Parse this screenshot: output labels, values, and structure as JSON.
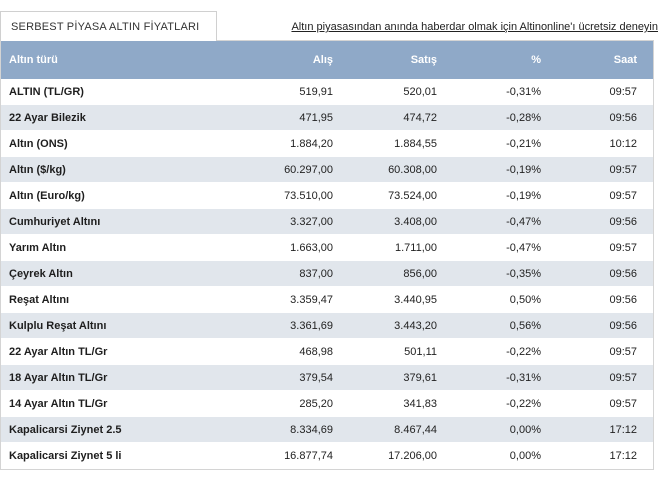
{
  "tab_title": "SERBEST PİYASA ALTIN FİYATLARI",
  "promo_link": "Altın piyasasından anında haberdar olmak için Altinonline'ı ücretsiz deneyin",
  "columns": {
    "name": "Altın türü",
    "buy": "Alış",
    "sell": "Satış",
    "pct": "%",
    "time": "Saat"
  },
  "rows": [
    {
      "name": "ALTIN (TL/GR)",
      "buy": "519,91",
      "sell": "520,01",
      "pct": "-0,31%",
      "time": "09:57"
    },
    {
      "name": "22 Ayar Bilezik",
      "buy": "471,95",
      "sell": "474,72",
      "pct": "-0,28%",
      "time": "09:56"
    },
    {
      "name": "Altın (ONS)",
      "buy": "1.884,20",
      "sell": "1.884,55",
      "pct": "-0,21%",
      "time": "10:12"
    },
    {
      "name": "Altın ($/kg)",
      "buy": "60.297,00",
      "sell": "60.308,00",
      "pct": "-0,19%",
      "time": "09:57"
    },
    {
      "name": "Altın (Euro/kg)",
      "buy": "73.510,00",
      "sell": "73.524,00",
      "pct": "-0,19%",
      "time": "09:57"
    },
    {
      "name": "Cumhuriyet Altını",
      "buy": "3.327,00",
      "sell": "3.408,00",
      "pct": "-0,47%",
      "time": "09:56"
    },
    {
      "name": "Yarım Altın",
      "buy": "1.663,00",
      "sell": "1.711,00",
      "pct": "-0,47%",
      "time": "09:57"
    },
    {
      "name": "Çeyrek Altın",
      "buy": "837,00",
      "sell": "856,00",
      "pct": "-0,35%",
      "time": "09:56"
    },
    {
      "name": "Reşat Altını",
      "buy": "3.359,47",
      "sell": "3.440,95",
      "pct": "0,50%",
      "time": "09:56"
    },
    {
      "name": "Kulplu Reşat Altını",
      "buy": "3.361,69",
      "sell": "3.443,20",
      "pct": "0,56%",
      "time": "09:56"
    },
    {
      "name": "22 Ayar Altın TL/Gr",
      "buy": "468,98",
      "sell": "501,11",
      "pct": "-0,22%",
      "time": "09:57"
    },
    {
      "name": "18 Ayar Altın TL/Gr",
      "buy": "379,54",
      "sell": "379,61",
      "pct": "-0,31%",
      "time": "09:57"
    },
    {
      "name": "14 Ayar Altın TL/Gr",
      "buy": "285,20",
      "sell": "341,83",
      "pct": "-0,22%",
      "time": "09:57"
    },
    {
      "name": "Kapalicarsi Ziynet 2.5",
      "buy": "8.334,69",
      "sell": "8.467,44",
      "pct": "0,00%",
      "time": "17:12"
    },
    {
      "name": "Kapalicarsi Ziynet 5 li",
      "buy": "16.877,74",
      "sell": "17.206,00",
      "pct": "0,00%",
      "time": "17:12"
    }
  ]
}
